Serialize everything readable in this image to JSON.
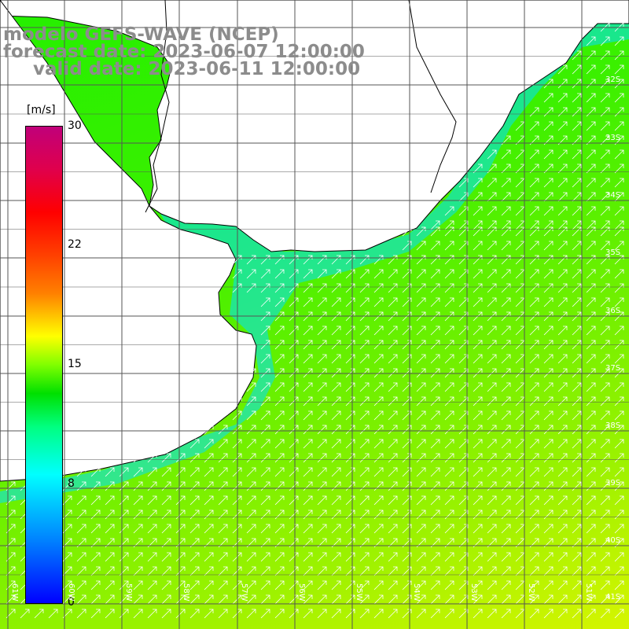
{
  "header": {
    "line1": "modelo GEFS-WAVE (NCEP)",
    "line2": "forecast date: 2023-06-07 12:00:00",
    "line3": "valid date: 2023-06-11 12:00:00"
  },
  "colorbar": {
    "unit": "[m/s]",
    "ticks": [
      "30",
      "22",
      "15",
      "8",
      "0"
    ],
    "min": 0,
    "max": 30,
    "colors": [
      "#0000ff",
      "#00ffff",
      "#00e000",
      "#ffff00",
      "#ff0000",
      "#c0007a"
    ]
  },
  "grid": {
    "lon_labels": [
      "61W",
      "60W",
      "59W",
      "58W",
      "57W",
      "56W",
      "55W",
      "54W",
      "53W",
      "52W",
      "51W"
    ],
    "lat_labels": [
      "32S",
      "33S",
      "34S",
      "35S",
      "36S",
      "37S",
      "38S",
      "39S",
      "40S",
      "41S"
    ]
  },
  "colors": {
    "land": "#ffffff",
    "coastline": "#000000",
    "gridline": "#555555",
    "arrow": "#ffffff",
    "title": "#8c8c8c"
  },
  "field": {
    "type": "wind-speed",
    "direction": "toward north-east",
    "nearshore_speed_m_s": 8,
    "offshore_speed_m_s": 12,
    "southeast_speed_m_s": 15
  }
}
